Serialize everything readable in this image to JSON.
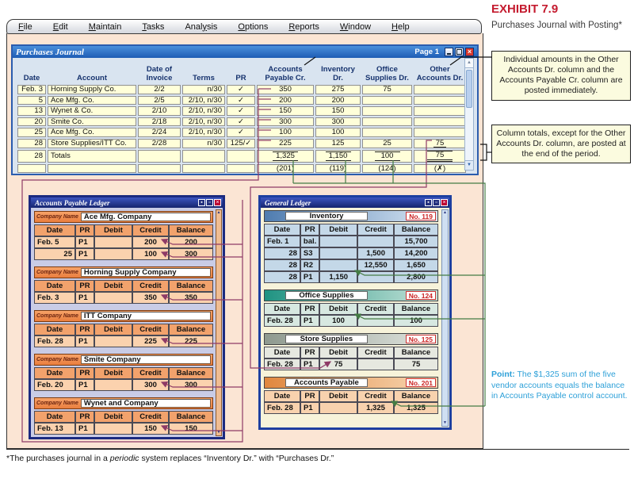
{
  "exhibit": {
    "label": "EXHIBIT 7.9",
    "subtitle": "Purchases Journal with Posting*"
  },
  "menu": {
    "items": [
      {
        "label": "File",
        "underline": "F"
      },
      {
        "label": "Edit",
        "underline": "E"
      },
      {
        "label": "Maintain",
        "underline": "M"
      },
      {
        "label": "Tasks",
        "underline": "T"
      },
      {
        "label": "Analysis",
        "underline": "y"
      },
      {
        "label": "Options",
        "underline": "O"
      },
      {
        "label": "Reports",
        "underline": "R"
      },
      {
        "label": "Window",
        "underline": "W"
      },
      {
        "label": "Help",
        "underline": "H"
      }
    ]
  },
  "journal": {
    "title": "Purchases Journal",
    "page": "Page 1",
    "columns": [
      "Date",
      "Account",
      "Date of|Invoice",
      "Terms",
      "PR",
      "Accounts|Payable Cr.",
      "Inventory|Dr.",
      "Office|Supplies Dr.",
      "Other|Accounts Dr."
    ],
    "rows": [
      [
        "Feb. 3",
        "Horning Supply Co.",
        "2/2",
        "n/30",
        "✓",
        "350",
        "275",
        "75",
        ""
      ],
      [
        "5",
        "Ace Mfg. Co.",
        "2/5",
        "2/10, n/30",
        "✓",
        "200",
        "200",
        "",
        ""
      ],
      [
        "13",
        "Wynet & Co.",
        "2/10",
        "2/10, n/30",
        "✓",
        "150",
        "150",
        "",
        ""
      ],
      [
        "20",
        "Smite Co.",
        "2/18",
        "2/10, n/30",
        "✓",
        "300",
        "300",
        "",
        ""
      ],
      [
        "25",
        "Ace Mfg. Co.",
        "2/24",
        "2/10, n/30",
        "✓",
        "100",
        "100",
        "",
        ""
      ],
      [
        "28",
        "Store Supplies/ITT Co.",
        "2/28",
        "n/30",
        "125/✓",
        "225",
        "125",
        "25",
        "75"
      ],
      [
        "28",
        "Totals",
        "",
        "",
        "",
        "1,325",
        "1,150",
        "100",
        "75"
      ],
      [
        "",
        "",
        "",
        "",
        "",
        "(201)",
        "(119)",
        "(124)",
        "(✗)"
      ]
    ]
  },
  "ap_ledger": {
    "title": "Accounts Payable Ledger",
    "company_label": "Company Name",
    "table_headers": [
      "Date",
      "PR",
      "Debit",
      "Credit",
      "Balance"
    ],
    "accounts": [
      {
        "name": "Ace Mfg. Company",
        "rows": [
          [
            "Feb. 5",
            "P1",
            "",
            "200",
            "200"
          ],
          [
            "25",
            "P1",
            "",
            "100",
            "300"
          ]
        ]
      },
      {
        "name": "Horning Supply Company",
        "rows": [
          [
            "Feb. 3",
            "P1",
            "",
            "350",
            "350"
          ]
        ]
      },
      {
        "name": "ITT Company",
        "rows": [
          [
            "Feb. 28",
            "P1",
            "",
            "225",
            "225"
          ]
        ]
      },
      {
        "name": "Smite Company",
        "rows": [
          [
            "Feb. 20",
            "P1",
            "",
            "300",
            "300"
          ]
        ]
      },
      {
        "name": "Wynet and Company",
        "rows": [
          [
            "Feb. 13",
            "P1",
            "",
            "150",
            "150"
          ]
        ]
      }
    ]
  },
  "general_ledger": {
    "title": "General Ledger",
    "table_headers": [
      "Date",
      "PR",
      "Debit",
      "Credit",
      "Balance"
    ],
    "accounts": [
      {
        "name": "Inventory",
        "number": "No. 119",
        "theme": "blue",
        "rows": [
          [
            "Feb. 1",
            "bal.",
            "",
            "",
            "15,700"
          ],
          [
            "28",
            "S3",
            "",
            "1,500",
            "14,200"
          ],
          [
            "28",
            "R2",
            "",
            "12,550",
            "1,650"
          ],
          [
            "28",
            "P1",
            "1,150",
            "",
            "2,800"
          ]
        ]
      },
      {
        "name": "Office Supplies",
        "number": "No. 124",
        "theme": "teal",
        "rows": [
          [
            "Feb. 28",
            "P1",
            "100",
            "",
            "100"
          ]
        ]
      },
      {
        "name": "Store Supplies",
        "number": "No. 125",
        "theme": "gray",
        "rows": [
          [
            "Feb. 28",
            "P1",
            "75",
            "",
            "75"
          ]
        ]
      },
      {
        "name": "Accounts Payable",
        "number": "No. 201",
        "theme": "orange",
        "rows": [
          [
            "Feb. 28",
            "P1",
            "",
            "1,325",
            "1,325"
          ]
        ]
      }
    ]
  },
  "notes": {
    "note1": "Individual amounts in the Other Accounts Dr. column and the Accounts Payable Cr. column are posted immediately.",
    "note2": "Column totals, except for the Other Accounts Dr. column, are posted at the end of the period."
  },
  "point": {
    "label": "Point:",
    "text": " The $1,325 sum of the five vendor accounts equals the balance in Accounts Payable control account."
  },
  "footnote": {
    "prefix": "*The purchases journal in a ",
    "italic": "periodic",
    "suffix": " system replaces “Inventory Dr.” with “Purchases Dr.”"
  },
  "icons": {
    "close": "×",
    "scroll_up": "▲",
    "scroll_down": "▼"
  },
  "colors": {
    "posting_individual": "#8e3a66",
    "posting_totals": "#447c44",
    "exhibit_red": "#c41b2f",
    "point_blue": "#2da0d8",
    "peach_bg": "#fbe5d4",
    "note_bg": "#fbfbdf"
  }
}
